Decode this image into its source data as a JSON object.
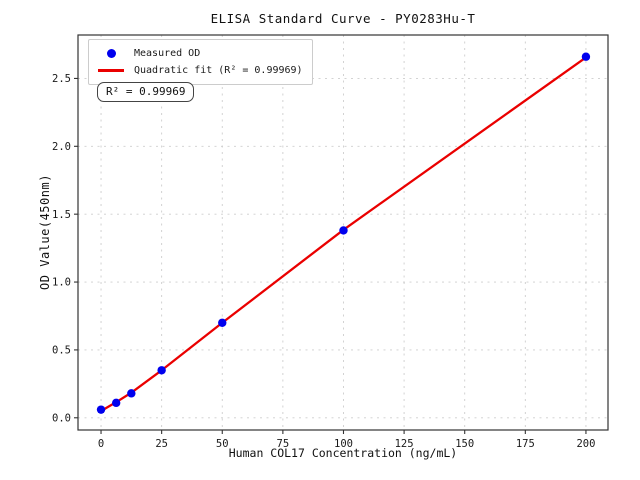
{
  "chart_data": {
    "type": "scatter",
    "title": "ELISA Standard Curve - PY0283Hu-T",
    "xlabel": "Human COL17 Concentration (ng/mL)",
    "ylabel": "OD Value(450nm)",
    "x_ticks": [
      0,
      25,
      50,
      75,
      100,
      125,
      150,
      175,
      200
    ],
    "x_tick_labels": [
      "0",
      "25",
      "50",
      "75",
      "100",
      "125",
      "150",
      "175",
      "200"
    ],
    "y_ticks": [
      0.0,
      0.5,
      1.0,
      1.5,
      2.0,
      2.5
    ],
    "y_tick_labels": [
      "0.0",
      "0.5",
      "1.0",
      "1.5",
      "2.0",
      "2.5"
    ],
    "xlim": [
      -9.5,
      209.1
    ],
    "ylim": [
      -0.09,
      2.82
    ],
    "grid": true,
    "legend_position": "upper left",
    "series": [
      {
        "name": "Measured OD",
        "type": "scatter",
        "color": "#0000ee",
        "x": [
          0,
          6.25,
          12.5,
          25,
          50,
          100,
          200
        ],
        "y": [
          0.06,
          0.11,
          0.18,
          0.35,
          0.7,
          1.38,
          2.66
        ]
      },
      {
        "name": "Quadratic fit (R² = 0.99969)",
        "type": "line",
        "color": "#ea0000",
        "x": [
          0,
          6.25,
          12.5,
          25,
          50,
          100,
          200
        ],
        "y": [
          0.05,
          0.115,
          0.185,
          0.35,
          0.7,
          1.385,
          2.655
        ]
      }
    ],
    "legend": [
      {
        "label": "Measured OD",
        "marker": "dot",
        "color": "#0000ee"
      },
      {
        "label": "Quadratic fit (R² = 0.99969)",
        "marker": "line",
        "color": "#ea0000"
      }
    ],
    "annotation": "R² = 0.99969",
    "r_squared": 0.99969
  },
  "colors": {
    "background": "#ffffff",
    "grid": "#cdcdcd",
    "frame": "#333333",
    "tick": "#333333",
    "text": "#1a1a1a",
    "point": "#0000ee",
    "fit_line": "#ea0000"
  }
}
